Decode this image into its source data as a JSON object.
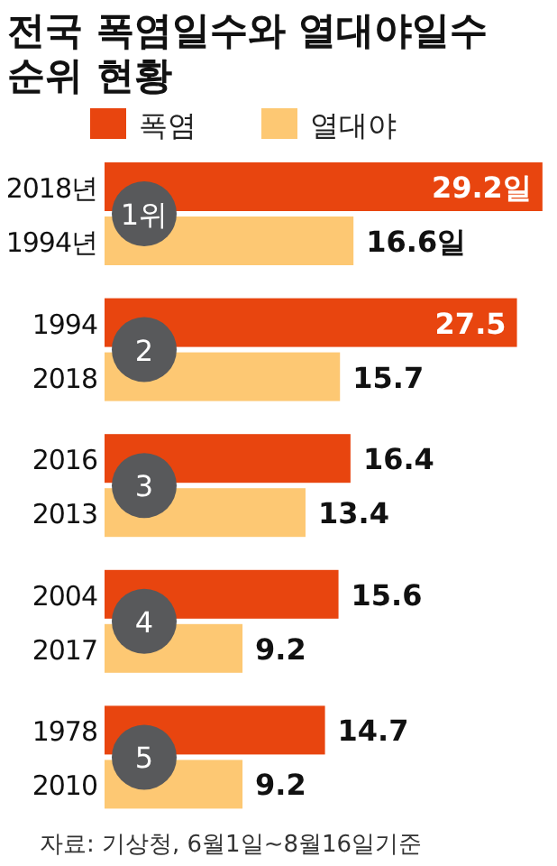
{
  "chart_data": {
    "type": "bar",
    "orientation": "horizontal",
    "title": "전국 폭염일수와 열대야일수 순위 현황",
    "categories": [
      "2018년",
      "1994년",
      "1994",
      "2018",
      "2016",
      "2013",
      "2004",
      "2017",
      "1978",
      "2010"
    ],
    "series": [
      {
        "name": "폭염",
        "color": "#e8450f",
        "values": [
          29.2,
          null,
          27.5,
          null,
          16.4,
          null,
          15.6,
          null,
          14.7,
          null
        ],
        "value_labels": [
          "29.2일",
          null,
          "27.5",
          null,
          "16.4",
          null,
          "15.6",
          null,
          "14.7",
          null
        ]
      },
      {
        "name": "열대야",
        "color": "#fdc873",
        "values": [
          null,
          16.6,
          null,
          15.7,
          null,
          13.4,
          null,
          9.2,
          null,
          9.2
        ],
        "value_labels": [
          null,
          "16.6일",
          null,
          "15.7",
          null,
          "13.4",
          null,
          "9.2",
          null,
          "9.2"
        ]
      }
    ],
    "annotations": [
      "1위",
      "2",
      "3",
      "4",
      "5",
      "자료: 기상청, 6월1일~8월16일기준"
    ],
    "legend": "top left"
  }
}
